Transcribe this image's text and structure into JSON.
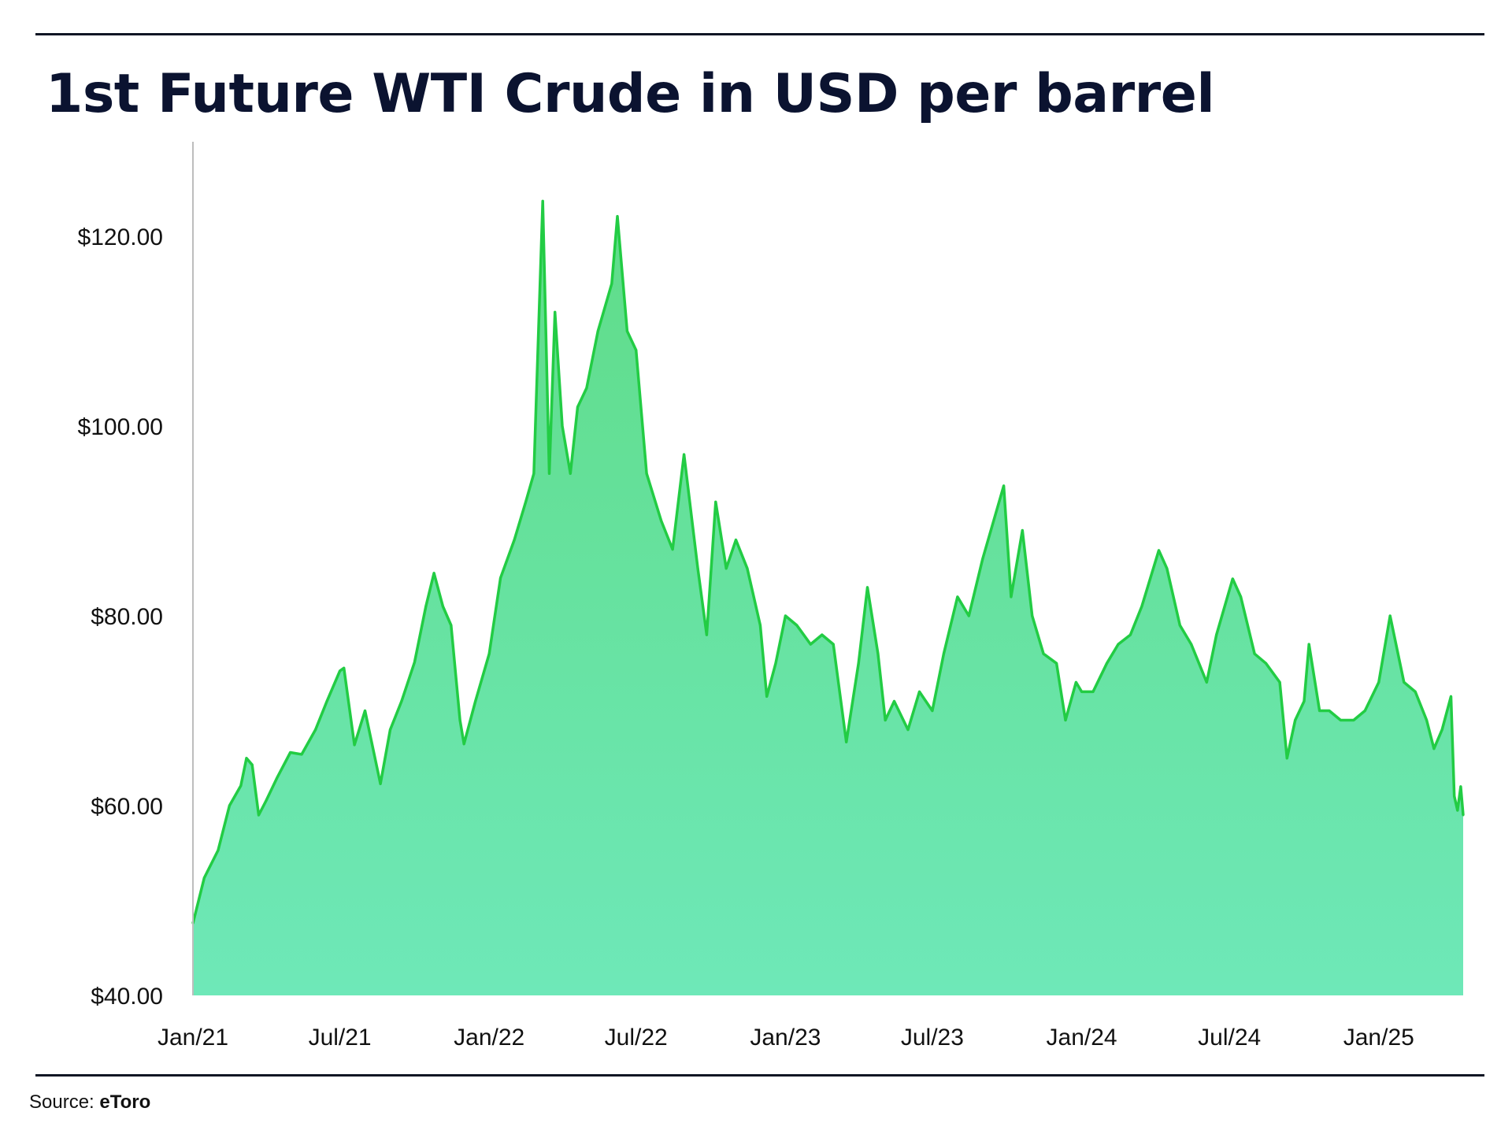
{
  "title": "1st Future WTI Crude in USD per barrel",
  "source": {
    "label": "Source:",
    "name": "eToro"
  },
  "colors": {
    "line": "#22cc44",
    "fill_top": "#5fdc88",
    "fill_bottom": "#6ee8b8",
    "rule": "#0f1524",
    "title": "#0b1330"
  },
  "chart_data": {
    "type": "area",
    "title": "1st Future WTI Crude in USD per barrel",
    "xlabel": "",
    "ylabel": "",
    "ylim": [
      40,
      130
    ],
    "y_ticks": [
      40,
      60,
      80,
      100,
      120
    ],
    "y_tick_labels": [
      "$40.00",
      "$60.00",
      "$80.00",
      "$100.00",
      "$120.00"
    ],
    "x_tick_labels": [
      "Jan/21",
      "Jul/21",
      "Jan/22",
      "Jul/22",
      "Jan/23",
      "Jul/23",
      "Jan/24",
      "Jul/24",
      "Jan/25"
    ],
    "x_tick_dates": [
      "2021-01-01",
      "2021-07-01",
      "2022-01-01",
      "2022-07-01",
      "2023-01-01",
      "2023-07-01",
      "2024-01-01",
      "2024-07-01",
      "2025-01-01"
    ],
    "xlim": [
      "2021-01-01",
      "2025-04-15"
    ],
    "grid": false,
    "series": [
      {
        "x": [
          "2021-01-01",
          "2021-01-15",
          "2021-02-01",
          "2021-02-15",
          "2021-03-01",
          "2021-03-08",
          "2021-03-15",
          "2021-03-23",
          "2021-04-01",
          "2021-04-15",
          "2021-05-01",
          "2021-05-15",
          "2021-06-01",
          "2021-06-15",
          "2021-07-01",
          "2021-07-06",
          "2021-07-19",
          "2021-08-01",
          "2021-08-20",
          "2021-09-01",
          "2021-09-15",
          "2021-10-01",
          "2021-10-15",
          "2021-10-25",
          "2021-11-05",
          "2021-11-15",
          "2021-11-26",
          "2021-12-01",
          "2021-12-15",
          "2022-01-01",
          "2022-01-15",
          "2022-02-01",
          "2022-02-15",
          "2022-02-25",
          "2022-03-08",
          "2022-03-16",
          "2022-03-23",
          "2022-04-01",
          "2022-04-11",
          "2022-04-20",
          "2022-05-01",
          "2022-05-15",
          "2022-06-01",
          "2022-06-08",
          "2022-06-20",
          "2022-07-01",
          "2022-07-14",
          "2022-08-01",
          "2022-08-15",
          "2022-08-29",
          "2022-09-15",
          "2022-09-26",
          "2022-10-07",
          "2022-10-20",
          "2022-11-01",
          "2022-11-15",
          "2022-12-01",
          "2022-12-09",
          "2022-12-20",
          "2023-01-01",
          "2023-01-15",
          "2023-02-01",
          "2023-02-15",
          "2023-03-01",
          "2023-03-17",
          "2023-04-01",
          "2023-04-12",
          "2023-04-25",
          "2023-05-04",
          "2023-05-15",
          "2023-06-01",
          "2023-06-15",
          "2023-07-01",
          "2023-07-15",
          "2023-08-01",
          "2023-08-15",
          "2023-09-01",
          "2023-09-27",
          "2023-10-06",
          "2023-10-20",
          "2023-11-01",
          "2023-11-15",
          "2023-12-01",
          "2023-12-12",
          "2023-12-25",
          "2024-01-01",
          "2024-01-15",
          "2024-02-01",
          "2024-02-15",
          "2024-03-01",
          "2024-03-15",
          "2024-04-05",
          "2024-04-15",
          "2024-05-01",
          "2024-05-15",
          "2024-06-03",
          "2024-06-15",
          "2024-07-05",
          "2024-07-15",
          "2024-08-01",
          "2024-08-15",
          "2024-09-01",
          "2024-09-10",
          "2024-09-20",
          "2024-10-01",
          "2024-10-07",
          "2024-10-20",
          "2024-11-01",
          "2024-11-15",
          "2024-12-01",
          "2024-12-15",
          "2025-01-01",
          "2025-01-15",
          "2025-02-01",
          "2025-02-15",
          "2025-03-01",
          "2025-03-10",
          "2025-03-20",
          "2025-03-31",
          "2025-04-04",
          "2025-04-08",
          "2025-04-12",
          "2025-04-15"
        ],
        "values": [
          47.6,
          52.4,
          55.3,
          60.0,
          62.1,
          65.0,
          64.3,
          59.0,
          60.5,
          63.0,
          65.6,
          65.4,
          68.0,
          71.0,
          74.2,
          74.5,
          66.4,
          70.0,
          62.3,
          68.0,
          71.0,
          75.1,
          81.0,
          84.5,
          81.0,
          79.0,
          69.0,
          66.5,
          71.0,
          76.0,
          84.0,
          88.0,
          92.0,
          95.0,
          123.7,
          95.0,
          112.0,
          100.0,
          95.0,
          102.0,
          104.0,
          110.0,
          115.0,
          122.1,
          110.0,
          108.0,
          95.0,
          90.0,
          87.0,
          97.0,
          85.0,
          78.0,
          92.0,
          85.0,
          88.0,
          85.0,
          79.0,
          71.5,
          75.0,
          80.0,
          79.0,
          77.0,
          78.0,
          77.0,
          66.7,
          75.0,
          83.0,
          76.0,
          69.0,
          71.0,
          68.0,
          72.0,
          70.0,
          76.0,
          82.0,
          80.0,
          86.0,
          93.7,
          82.0,
          89.0,
          80.0,
          76.0,
          75.0,
          69.0,
          73.0,
          72.0,
          72.0,
          75.0,
          77.0,
          78.0,
          81.0,
          86.9,
          85.0,
          79.0,
          77.0,
          73.0,
          78.0,
          83.9,
          82.0,
          76.0,
          75.0,
          73.0,
          65.0,
          69.0,
          71.0,
          77.0,
          70.0,
          70.0,
          69.0,
          69.0,
          70.0,
          73.0,
          80.0,
          73.0,
          72.0,
          69.0,
          66.0,
          68.0,
          71.5,
          61.0,
          59.5,
          62.0,
          59.0
        ]
      }
    ]
  }
}
